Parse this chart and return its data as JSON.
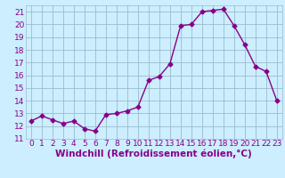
{
  "x": [
    0,
    1,
    2,
    3,
    4,
    5,
    6,
    7,
    8,
    9,
    10,
    11,
    12,
    13,
    14,
    15,
    16,
    17,
    18,
    19,
    20,
    21,
    22,
    23
  ],
  "y": [
    12.4,
    12.8,
    12.5,
    12.2,
    12.4,
    11.8,
    11.6,
    12.9,
    13.0,
    13.2,
    13.5,
    15.6,
    15.9,
    16.9,
    19.9,
    20.0,
    21.0,
    21.1,
    21.2,
    19.9,
    18.4,
    16.7,
    16.3,
    14.0
  ],
  "line_color": "#880088",
  "marker": "D",
  "marker_size": 2.5,
  "bg_color": "#cceeff",
  "grid_color": "#99bbcc",
  "xlabel": "Windchill (Refroidissement éolien,°C)",
  "xlim": [
    -0.5,
    23.5
  ],
  "ylim": [
    11,
    21.5
  ],
  "yticks": [
    11,
    12,
    13,
    14,
    15,
    16,
    17,
    18,
    19,
    20,
    21
  ],
  "xticks": [
    0,
    1,
    2,
    3,
    4,
    5,
    6,
    7,
    8,
    9,
    10,
    11,
    12,
    13,
    14,
    15,
    16,
    17,
    18,
    19,
    20,
    21,
    22,
    23
  ],
  "tick_fontsize": 6.5,
  "xlabel_fontsize": 7.5,
  "line_width": 1.0
}
